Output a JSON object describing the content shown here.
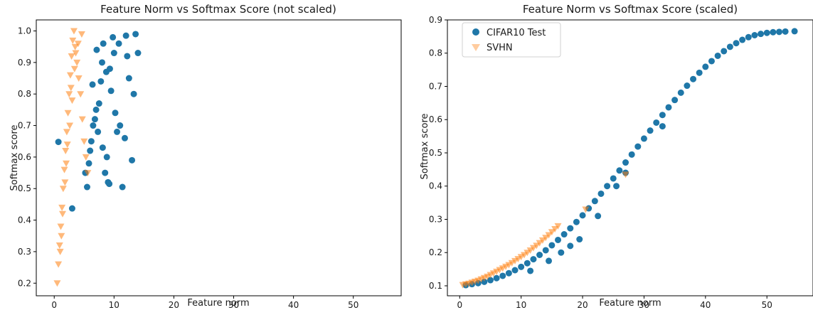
{
  "chart_data": [
    {
      "type": "scatter",
      "title": "Feature Norm vs Softmax Score (not scaled)",
      "xlabel": "Feature norm",
      "ylabel": "Softmax score",
      "xlim": [
        -3,
        58
      ],
      "ylim": [
        0.16,
        1.035
      ],
      "xticks": [
        0,
        10,
        20,
        30,
        40,
        50
      ],
      "yticks": [
        0.2,
        0.3,
        0.4,
        0.5,
        0.6,
        0.7,
        0.8,
        0.9,
        1.0
      ],
      "ytick_labels": [
        "0.2",
        "0.3",
        "0.4",
        "0.5",
        "0.6",
        "0.7",
        "0.8",
        "0.9",
        "1.0"
      ],
      "grid": false,
      "legend": null,
      "series": [
        {
          "color": "#1f77a8",
          "marker": "circle",
          "x": [
            0.7,
            3.0,
            5.5,
            5.2,
            6.0,
            6.5,
            7.0,
            7.3,
            7.8,
            8.0,
            8.2,
            8.5,
            8.8,
            9.0,
            9.2,
            9.5,
            9.8,
            10.0,
            10.5,
            11.0,
            11.4,
            11.8,
            12.0,
            12.5,
            13.0,
            13.3,
            13.6,
            14.0,
            6.2,
            6.8,
            7.5,
            8.7,
            9.3,
            10.2,
            10.8,
            12.2,
            5.8,
            6.4,
            7.1,
            8.1
          ],
          "y": [
            0.648,
            0.437,
            0.505,
            0.55,
            0.62,
            0.7,
            0.75,
            0.68,
            0.84,
            0.9,
            0.96,
            0.55,
            0.6,
            0.52,
            0.515,
            0.81,
            0.98,
            0.93,
            0.68,
            0.7,
            0.505,
            0.66,
            0.985,
            0.85,
            0.59,
            0.8,
            0.99,
            0.93,
            0.65,
            0.72,
            0.77,
            0.87,
            0.88,
            0.74,
            0.96,
            0.92,
            0.58,
            0.83,
            0.94,
            0.63
          ]
        },
        {
          "color": "#ff7f0e",
          "marker": "triangle",
          "x": [
            0.5,
            0.7,
            0.9,
            1.1,
            1.3,
            1.5,
            1.7,
            1.9,
            2.1,
            2.3,
            2.5,
            2.7,
            2.9,
            3.1,
            3.3,
            3.5,
            3.8,
            4.1,
            4.4,
            4.7,
            5.0,
            5.3,
            5.6,
            1.0,
            1.4,
            1.8,
            2.2,
            2.6,
            3.0,
            3.4,
            4.0,
            4.6,
            1.2,
            2.0,
            2.8,
            3.6
          ],
          "y": [
            0.2,
            0.26,
            0.32,
            0.38,
            0.44,
            0.5,
            0.56,
            0.62,
            0.68,
            0.74,
            0.8,
            0.86,
            0.92,
            0.97,
            1.0,
            0.95,
            0.9,
            0.85,
            0.8,
            0.72,
            0.65,
            0.6,
            0.55,
            0.3,
            0.42,
            0.52,
            0.64,
            0.7,
            0.78,
            0.88,
            0.96,
            0.99,
            0.35,
            0.58,
            0.82,
            0.93
          ]
        }
      ]
    },
    {
      "type": "scatter",
      "title": "Feature Norm vs Softmax Score (scaled)",
      "xlabel": "Feature norm",
      "ylabel": "Softmax score",
      "xlim": [
        -2,
        57.5
      ],
      "ylim": [
        0.07,
        0.9
      ],
      "xticks": [
        0,
        10,
        20,
        30,
        40,
        50
      ],
      "yticks": [
        0.1,
        0.2,
        0.3,
        0.4,
        0.5,
        0.6,
        0.7,
        0.8,
        0.9
      ],
      "ytick_labels": [
        "0.1",
        "0.2",
        "0.3",
        "0.4",
        "0.5",
        "0.6",
        "0.7",
        "0.8",
        "0.9"
      ],
      "grid": false,
      "legend": "top-left",
      "series": [
        {
          "name": "CIFAR10 Test",
          "color": "#1f77a8",
          "marker": "circle",
          "x": [
            1,
            2,
            3,
            4,
            5,
            6,
            7,
            8,
            9,
            10,
            11,
            12,
            13,
            14,
            15,
            16,
            17,
            18,
            19,
            20,
            21,
            22,
            23,
            24,
            25,
            26,
            27,
            28,
            29,
            30,
            31,
            32,
            33,
            34,
            35,
            36,
            37,
            38,
            39,
            40,
            41,
            42,
            43,
            44,
            45,
            46,
            47,
            48,
            49,
            50,
            51,
            52,
            53,
            54.5,
            14.5,
            16.5,
            18.0,
            19.5,
            11.5,
            22.5,
            25.5,
            27.0,
            33.0
          ],
          "y": [
            0.102,
            0.105,
            0.108,
            0.112,
            0.117,
            0.123,
            0.13,
            0.138,
            0.147,
            0.157,
            0.168,
            0.18,
            0.193,
            0.207,
            0.222,
            0.238,
            0.255,
            0.273,
            0.292,
            0.312,
            0.333,
            0.355,
            0.377,
            0.4,
            0.423,
            0.447,
            0.471,
            0.495,
            0.519,
            0.543,
            0.567,
            0.591,
            0.614,
            0.637,
            0.659,
            0.681,
            0.702,
            0.722,
            0.741,
            0.759,
            0.776,
            0.792,
            0.806,
            0.819,
            0.83,
            0.84,
            0.848,
            0.854,
            0.858,
            0.861,
            0.863,
            0.864,
            0.865,
            0.866,
            0.175,
            0.2,
            0.22,
            0.24,
            0.145,
            0.31,
            0.4,
            0.44,
            0.58
          ]
        },
        {
          "name": "SVHN",
          "color": "#ff7f0e",
          "marker": "triangle",
          "x": [
            0.5,
            1.0,
            1.5,
            2.0,
            2.5,
            3.0,
            3.5,
            4.0,
            4.5,
            5.0,
            5.5,
            6.0,
            6.5,
            7.0,
            7.5,
            8.0,
            8.5,
            9.0,
            9.5,
            10.0,
            10.5,
            11.0,
            11.5,
            12.0,
            12.5,
            13.0,
            13.5,
            14.0,
            14.5,
            15.0,
            15.5,
            16.0,
            20.5,
            27.0
          ],
          "y": [
            0.103,
            0.105,
            0.107,
            0.11,
            0.113,
            0.116,
            0.12,
            0.124,
            0.128,
            0.133,
            0.138,
            0.143,
            0.148,
            0.153,
            0.158,
            0.163,
            0.169,
            0.175,
            0.181,
            0.187,
            0.193,
            0.2,
            0.207,
            0.214,
            0.221,
            0.229,
            0.237,
            0.245,
            0.253,
            0.262,
            0.271,
            0.28,
            0.33,
            0.435
          ]
        }
      ]
    }
  ]
}
